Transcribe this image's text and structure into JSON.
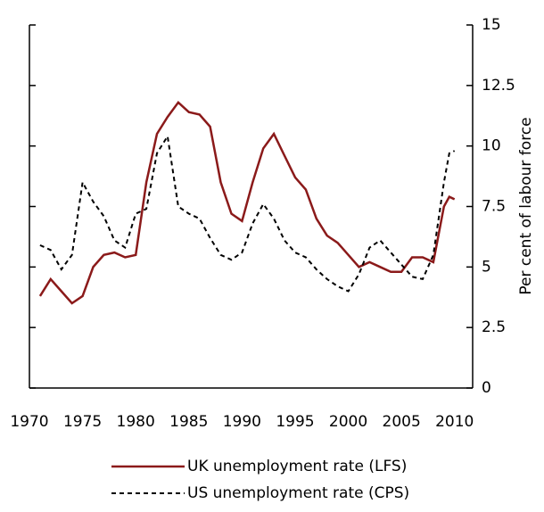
{
  "chart_data": {
    "type": "line",
    "y_label": "Per cent of labour force",
    "x": [
      1971,
      1972,
      1973,
      1974,
      1975,
      1976,
      1977,
      1978,
      1979,
      1980,
      1981,
      1982,
      1983,
      1984,
      1985,
      1986,
      1987,
      1988,
      1989,
      1990,
      1991,
      1992,
      1993,
      1994,
      1995,
      1996,
      1997,
      1998,
      1999,
      2000,
      2001,
      2002,
      2003,
      2004,
      2005,
      2006,
      2007,
      2008,
      2009,
      2009.5,
      2010
    ],
    "series": [
      {
        "name": "UK unemployment rate (LFS)",
        "color": "#8b1a1a",
        "dash": false,
        "values": [
          3.8,
          4.5,
          4.0,
          3.5,
          3.8,
          5.0,
          5.5,
          5.6,
          5.4,
          5.5,
          8.5,
          10.5,
          11.2,
          11.8,
          11.4,
          11.3,
          10.8,
          8.5,
          7.2,
          6.9,
          8.5,
          9.9,
          10.5,
          9.6,
          8.7,
          8.2,
          7.0,
          6.3,
          6.0,
          5.5,
          5.0,
          5.2,
          5.0,
          4.8,
          4.8,
          5.4,
          5.4,
          5.2,
          7.5,
          7.9,
          7.8
        ]
      },
      {
        "name": "US unemployment rate (CPS)",
        "color": "#000000",
        "dash": true,
        "values": [
          5.9,
          5.7,
          4.9,
          5.5,
          8.5,
          7.7,
          7.1,
          6.1,
          5.8,
          7.2,
          7.4,
          9.7,
          10.4,
          7.5,
          7.2,
          7.0,
          6.2,
          5.5,
          5.3,
          5.6,
          6.8,
          7.6,
          7.0,
          6.1,
          5.6,
          5.4,
          4.9,
          4.5,
          4.2,
          4.0,
          4.7,
          5.8,
          6.1,
          5.6,
          5.1,
          4.6,
          4.5,
          5.5,
          8.5,
          9.7,
          9.8
        ]
      }
    ],
    "xlim": [
      1970,
      2011.7
    ],
    "xticks": [
      1970,
      1975,
      1980,
      1985,
      1990,
      1995,
      2000,
      2005,
      2010
    ],
    "ylim": [
      0,
      15
    ],
    "yticks": [
      0,
      2.5,
      5,
      7.5,
      10,
      12.5,
      15
    ]
  }
}
